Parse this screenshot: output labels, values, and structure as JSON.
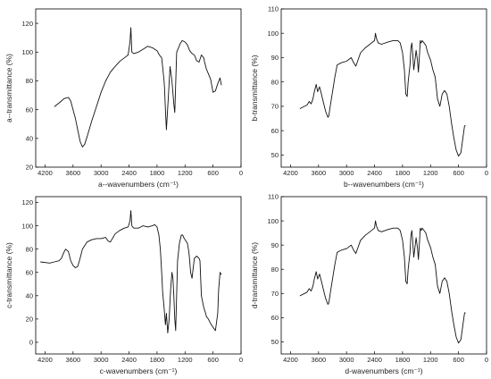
{
  "chart_data": [
    {
      "id": "a",
      "type": "line",
      "xlabel": "a--wavenumbers (cm⁻¹)",
      "ylabel": "a--transmittance (%)",
      "xlim": [
        4400,
        0
      ],
      "ylim": [
        20,
        130
      ],
      "xticks": [
        "4200",
        "3600",
        "3000",
        "2400",
        "1800",
        "1200",
        "600",
        "0"
      ],
      "yticks": [
        "20",
        "40",
        "60",
        "80",
        "100",
        "120"
      ],
      "series": [
        {
          "x": [
            4000,
            3850,
            3800,
            3760,
            3700,
            3650,
            3550,
            3450,
            3400,
            3350,
            3300,
            3200,
            3100,
            3000,
            2900,
            2800,
            2700,
            2600,
            2500,
            2420,
            2380,
            2360,
            2340,
            2300,
            2200,
            2100,
            2000,
            1900,
            1800,
            1750,
            1700,
            1650,
            1640,
            1620,
            1600,
            1560,
            1520,
            1480,
            1440,
            1420,
            1380,
            1340,
            1300,
            1260,
            1200,
            1150,
            1100,
            1050,
            1000,
            950,
            900,
            850,
            800,
            780,
            740,
            700,
            650,
            600,
            550,
            500,
            450,
            420
          ],
          "y": [
            62,
            66,
            67.5,
            68,
            68.5,
            66,
            54,
            38,
            34,
            36,
            41,
            52,
            62,
            72,
            80,
            86,
            90,
            93.5,
            96,
            98,
            107,
            117,
            100,
            99,
            100,
            102,
            104,
            103,
            101,
            98,
            96,
            80,
            75,
            60,
            46,
            68,
            90,
            80,
            64,
            58,
            100,
            103,
            106,
            108,
            107,
            105,
            101,
            99,
            98,
            94,
            93,
            98,
            96,
            93,
            88,
            85,
            81,
            72,
            73,
            78,
            82,
            77
          ]
        }
      ]
    },
    {
      "id": "b",
      "type": "line",
      "xlabel": "b--wavenumbers (cm⁻¹)",
      "ylabel": "b-transmittance (%)",
      "xlim": [
        4400,
        0
      ],
      "ylim": [
        45,
        110
      ],
      "xticks": [
        "4200",
        "3600",
        "3000",
        "2400",
        "1800",
        "1200",
        "600",
        "0"
      ],
      "yticks": [
        "50",
        "60",
        "70",
        "80",
        "90",
        "100",
        "110"
      ],
      "series": [
        {
          "x": [
            4000,
            3900,
            3850,
            3800,
            3760,
            3720,
            3690,
            3650,
            3620,
            3580,
            3550,
            3500,
            3450,
            3400,
            3380,
            3350,
            3300,
            3250,
            3200,
            3150,
            3100,
            3000,
            2900,
            2850,
            2800,
            2700,
            2600,
            2500,
            2400,
            2380,
            2360,
            2320,
            2250,
            2100,
            2000,
            1900,
            1850,
            1800,
            1760,
            1730,
            1700,
            1680,
            1640,
            1620,
            1600,
            1580,
            1560,
            1540,
            1510,
            1480,
            1460,
            1440,
            1420,
            1400,
            1380,
            1340,
            1300,
            1260,
            1200,
            1150,
            1100,
            1050,
            1000,
            970,
            950,
            900,
            850,
            800,
            750,
            700,
            650,
            600,
            550,
            500,
            470,
            450
          ],
          "y": [
            69,
            70,
            70.5,
            72,
            71,
            73,
            76,
            79,
            76,
            78,
            76,
            72,
            68,
            65.5,
            66,
            70,
            76,
            82,
            87,
            87.5,
            88,
            88.5,
            90,
            88,
            86.5,
            92,
            94,
            95.5,
            97,
            100,
            98,
            96,
            95.5,
            96.5,
            97,
            97,
            96,
            92,
            85,
            75,
            74,
            80,
            87,
            94,
            96,
            91,
            85,
            88,
            93,
            89,
            84,
            90,
            97,
            96,
            97,
            96,
            95,
            92,
            89,
            85,
            82,
            73,
            70,
            73,
            75,
            76.5,
            75,
            70,
            63,
            57,
            52,
            49.5,
            51,
            58,
            62,
            62
          ]
        }
      ]
    },
    {
      "id": "c",
      "type": "line",
      "xlabel": "c-wavenumbers (cm⁻¹)",
      "ylabel": "c-transmittance (%)",
      "xlim": [
        4400,
        0
      ],
      "ylim": [
        -10,
        125
      ],
      "xticks": [
        "4200",
        "3600",
        "3000",
        "2400",
        "1800",
        "1200",
        "600",
        "0"
      ],
      "yticks": [
        "0",
        "20",
        "40",
        "60",
        "80",
        "100",
        "120"
      ],
      "series": [
        {
          "x": [
            4300,
            4100,
            4000,
            3900,
            3850,
            3800,
            3760,
            3700,
            3650,
            3600,
            3550,
            3500,
            3450,
            3400,
            3300,
            3200,
            3100,
            3000,
            2900,
            2850,
            2800,
            2700,
            2600,
            2500,
            2420,
            2380,
            2360,
            2340,
            2300,
            2200,
            2100,
            2000,
            1900,
            1850,
            1800,
            1760,
            1730,
            1700,
            1680,
            1650,
            1620,
            1600,
            1570,
            1540,
            1510,
            1480,
            1460,
            1440,
            1420,
            1400,
            1360,
            1320,
            1280,
            1250,
            1230,
            1200,
            1150,
            1120,
            1100,
            1080,
            1050,
            1000,
            950,
            900,
            880,
            850,
            800,
            760,
            740,
            700,
            650,
            600,
            550,
            500,
            480,
            450,
            420
          ],
          "y": [
            69,
            68,
            69,
            70,
            72,
            77,
            80,
            78,
            70,
            66,
            64,
            65,
            72,
            80,
            86,
            88,
            89,
            89,
            90,
            87,
            86,
            93,
            96,
            98,
            99,
            104,
            113,
            100,
            98,
            98,
            100,
            99,
            100,
            101,
            99,
            92,
            80,
            60,
            43,
            30,
            15,
            25,
            8,
            20,
            45,
            60,
            55,
            40,
            20,
            10,
            70,
            85,
            92,
            92,
            90,
            88,
            85,
            78,
            70,
            60,
            55,
            72,
            74,
            72,
            70,
            40,
            30,
            25,
            22,
            20,
            16,
            13,
            10,
            25,
            45,
            60,
            58
          ]
        }
      ]
    },
    {
      "id": "d",
      "type": "line",
      "xlabel": "d-wavenumbers (cm⁻¹)",
      "ylabel": "d-transmittance (%)",
      "xlim": [
        4400,
        0
      ],
      "ylim": [
        45,
        110
      ],
      "xticks": [
        "4200",
        "3600",
        "3000",
        "2400",
        "1800",
        "1200",
        "600",
        "0"
      ],
      "yticks": [
        "50",
        "60",
        "70",
        "80",
        "90",
        "100",
        "110"
      ],
      "series": [
        {
          "x": [
            4000,
            3900,
            3850,
            3800,
            3760,
            3720,
            3690,
            3650,
            3620,
            3580,
            3550,
            3500,
            3450,
            3400,
            3380,
            3350,
            3300,
            3250,
            3200,
            3150,
            3100,
            3000,
            2900,
            2850,
            2800,
            2700,
            2600,
            2500,
            2400,
            2380,
            2360,
            2320,
            2250,
            2100,
            2000,
            1900,
            1850,
            1800,
            1760,
            1730,
            1700,
            1680,
            1640,
            1620,
            1600,
            1580,
            1560,
            1540,
            1510,
            1480,
            1460,
            1440,
            1420,
            1400,
            1380,
            1340,
            1300,
            1260,
            1200,
            1150,
            1100,
            1050,
            1000,
            970,
            950,
            900,
            850,
            800,
            750,
            700,
            650,
            600,
            550,
            500,
            470,
            450
          ],
          "y": [
            69,
            70,
            70.5,
            72,
            71,
            73,
            76,
            79,
            76,
            78,
            76,
            72,
            68,
            65.5,
            66,
            70,
            76,
            82,
            87,
            87.5,
            88,
            88.5,
            90,
            88,
            86.5,
            92,
            94,
            95.5,
            97,
            100,
            98,
            96,
            95.5,
            96.5,
            97,
            97,
            96,
            92,
            85,
            75,
            74,
            80,
            87,
            94,
            96,
            91,
            85,
            88,
            93,
            89,
            84,
            90,
            97,
            96,
            97,
            96,
            95,
            92,
            89,
            85,
            82,
            73,
            70,
            73,
            75,
            76.5,
            75,
            70,
            63,
            57,
            52,
            49.5,
            51,
            58,
            62,
            62
          ]
        }
      ]
    }
  ]
}
